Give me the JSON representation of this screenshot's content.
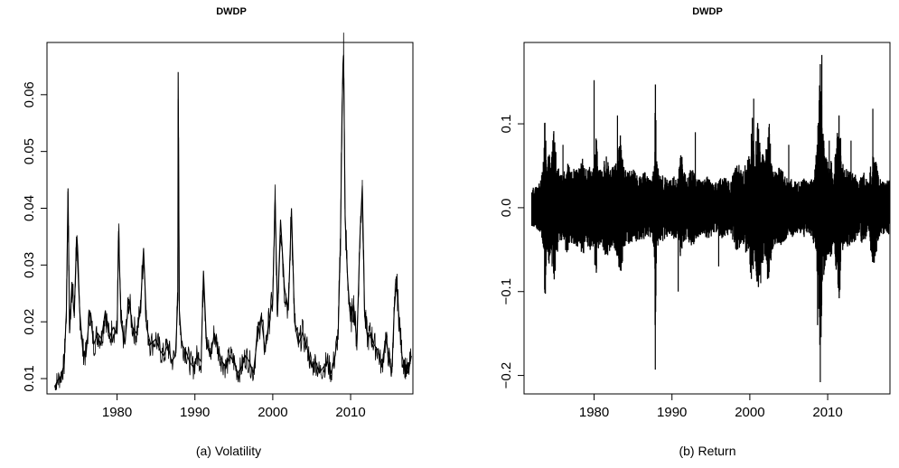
{
  "chart_data": [
    {
      "type": "line",
      "title": "DWDP",
      "caption": "(a) Volatility",
      "xlabel": "",
      "ylabel": "",
      "xlim": [
        1971,
        2018
      ],
      "ylim": [
        0.0073,
        0.0692
      ],
      "x_ticks": [
        1980,
        1990,
        2000,
        2010
      ],
      "x_tick_labels": [
        "1980",
        "1990",
        "2000",
        "2010"
      ],
      "y_ticks": [
        0.01,
        0.02,
        0.03,
        0.04,
        0.05,
        0.06
      ],
      "y_tick_labels": [
        "0.01",
        "0.02",
        "0.03",
        "0.04",
        "0.05",
        "0.06"
      ],
      "grid": false,
      "line_color": "#000000",
      "series": [
        {
          "x": [
            1972.0,
            1972.3,
            1972.8,
            1973.2,
            1973.5,
            1973.7,
            1973.9,
            1974.2,
            1974.5,
            1974.8,
            1975.2,
            1975.6,
            1976.0,
            1976.5,
            1977.0,
            1977.5,
            1978.0,
            1978.5,
            1979.0,
            1979.5,
            1980.0,
            1980.2,
            1980.5,
            1981.0,
            1981.5,
            1982.0,
            1982.5,
            1983.0,
            1983.4,
            1983.8,
            1984.3,
            1985.0,
            1985.5,
            1986.0,
            1986.5,
            1987.0,
            1987.5,
            1987.8,
            1987.85,
            1988.0,
            1988.3,
            1988.8,
            1989.3,
            1989.8,
            1990.3,
            1990.8,
            1991.1,
            1991.5,
            1992.0,
            1992.5,
            1993.0,
            1993.5,
            1994.0,
            1994.5,
            1995.0,
            1995.5,
            1996.0,
            1996.5,
            1997.0,
            1997.5,
            1998.0,
            1998.5,
            1999.0,
            1999.5,
            2000.0,
            2000.3,
            2000.6,
            2001.0,
            2001.5,
            2002.0,
            2002.4,
            2002.8,
            2003.3,
            2003.8,
            2004.5,
            2005.0,
            2005.5,
            2006.0,
            2006.5,
            2007.0,
            2007.5,
            2008.0,
            2008.4,
            2008.7,
            2008.9,
            2009.1,
            2009.3,
            2009.6,
            2010.0,
            2010.4,
            2010.8,
            2011.2,
            2011.5,
            2011.8,
            2012.2,
            2012.6,
            2013.0,
            2013.5,
            2014.0,
            2014.5,
            2015.0,
            2015.3,
            2015.6,
            2015.9,
            2016.2,
            2016.6,
            2017.0,
            2017.4,
            2017.8
          ],
          "y": [
            0.0085,
            0.0095,
            0.0105,
            0.0125,
            0.022,
            0.0435,
            0.018,
            0.027,
            0.021,
            0.035,
            0.022,
            0.015,
            0.014,
            0.022,
            0.016,
            0.018,
            0.017,
            0.022,
            0.017,
            0.019,
            0.018,
            0.036,
            0.02,
            0.016,
            0.024,
            0.019,
            0.018,
            0.022,
            0.033,
            0.019,
            0.016,
            0.017,
            0.015,
            0.014,
            0.016,
            0.013,
            0.014,
            0.024,
            0.064,
            0.022,
            0.016,
            0.015,
            0.013,
            0.012,
            0.014,
            0.013,
            0.029,
            0.016,
            0.014,
            0.018,
            0.015,
            0.013,
            0.012,
            0.014,
            0.013,
            0.011,
            0.012,
            0.014,
            0.013,
            0.011,
            0.017,
            0.021,
            0.015,
            0.02,
            0.024,
            0.0415,
            0.021,
            0.038,
            0.026,
            0.022,
            0.04,
            0.02,
            0.016,
            0.018,
            0.015,
            0.012,
            0.013,
            0.011,
            0.012,
            0.013,
            0.011,
            0.014,
            0.018,
            0.035,
            0.058,
            0.067,
            0.038,
            0.028,
            0.02,
            0.023,
            0.016,
            0.035,
            0.044,
            0.021,
            0.017,
            0.018,
            0.016,
            0.015,
            0.012,
            0.017,
            0.013,
            0.011,
            0.022,
            0.027,
            0.021,
            0.014,
            0.012,
            0.011,
            0.014
          ]
        }
      ]
    },
    {
      "type": "line",
      "title": "DWDP",
      "caption": "(b) Return",
      "xlabel": "",
      "ylabel": "",
      "xlim": [
        1971,
        2018
      ],
      "ylim": [
        -0.222,
        0.197
      ],
      "x_ticks": [
        1980,
        1990,
        2000,
        2010
      ],
      "x_tick_labels": [
        "1980",
        "1990",
        "2000",
        "2010"
      ],
      "y_ticks": [
        -0.2,
        -0.1,
        0.0,
        0.1
      ],
      "y_tick_labels": [
        "−0.2",
        "−0.1",
        "0.0",
        "0.1"
      ],
      "grid": false,
      "line_color": "#000000",
      "series": [
        {
          "x": [
            1973.8,
            1974.6,
            1976.0,
            1980.0,
            1983.0,
            1987.83,
            1987.86,
            1990.8,
            1993.0,
            1996.0,
            2000.5,
            2001.4,
            2002.5,
            2005.0,
            2008.7,
            2008.9,
            2009.05,
            2009.25,
            2010.2,
            2011.5,
            2013.0,
            2015.8
          ],
          "y": [
            0.08,
            -0.07,
            0.075,
            0.152,
            0.11,
            0.113,
            -0.193,
            -0.1,
            0.09,
            -0.07,
            0.13,
            -0.09,
            0.1,
            0.075,
            -0.14,
            0.128,
            -0.208,
            0.182,
            0.08,
            -0.1,
            0.08,
            0.118
          ]
        }
      ]
    }
  ]
}
